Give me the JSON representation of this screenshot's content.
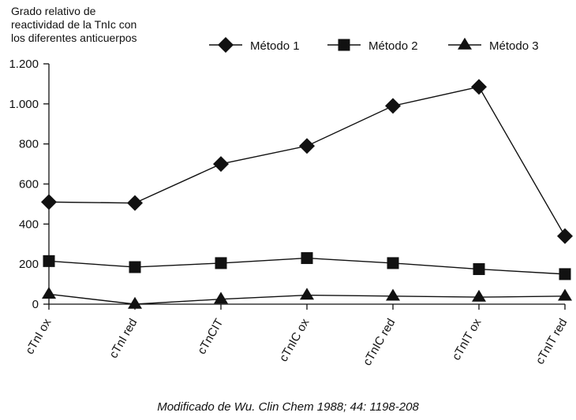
{
  "chart_data": {
    "type": "line",
    "ylabel_lines": [
      "Grado relativo de",
      "reactividad de la TnIc con",
      "los diferentes anticuerpos"
    ],
    "categories": [
      "cTnI ox",
      "cTnI red",
      "cTnCIT",
      "cTnIC ox",
      "cTnIC red",
      "cTnIT ox",
      "cTnIT red"
    ],
    "ylim": [
      0,
      1200
    ],
    "yticks": [
      0,
      200,
      400,
      600,
      800,
      1000,
      1200
    ],
    "ytick_labels": [
      "0",
      "200",
      "400",
      "600",
      "800",
      "1.000",
      "1.200"
    ],
    "grid": false,
    "legend_position": "top-right",
    "series": [
      {
        "name": "Método 1",
        "marker": "diamond",
        "values": [
          510,
          505,
          700,
          790,
          990,
          1085,
          340
        ]
      },
      {
        "name": "Método 2",
        "marker": "square",
        "values": [
          215,
          185,
          205,
          230,
          205,
          175,
          150
        ]
      },
      {
        "name": "Método 3",
        "marker": "triangle",
        "values": [
          50,
          0,
          25,
          45,
          40,
          35,
          40
        ]
      }
    ],
    "source": "Modificado de Wu. Clin Chem 1988; 44: 1198-208"
  }
}
